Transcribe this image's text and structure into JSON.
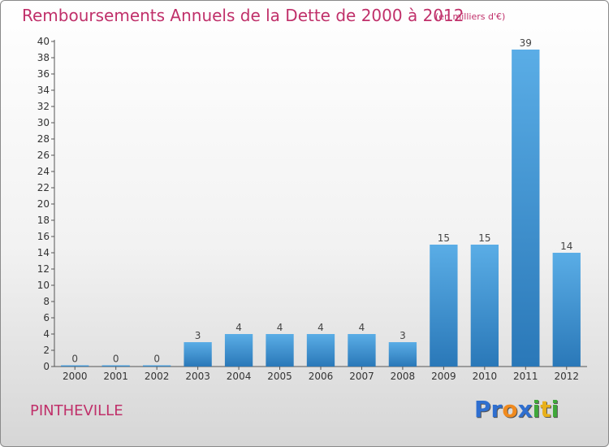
{
  "page": {
    "commune": "PINTHEVILLE",
    "logo": {
      "letters": [
        "P",
        "r",
        "o",
        "x",
        "i",
        "t",
        "i"
      ],
      "colors": [
        "#2f6fd0",
        "#2f6fd0",
        "#f08a1e",
        "#2f6fd0",
        "#3fa83a",
        "#e8b01a",
        "#3fa83a"
      ]
    }
  },
  "chart_data": {
    "type": "bar",
    "title": "Remboursements Annuels de la Dette de 2000 à 2012",
    "unit_label": "(en milliers d'€)",
    "categories": [
      "2000",
      "2001",
      "2002",
      "2003",
      "2004",
      "2005",
      "2006",
      "2007",
      "2008",
      "2009",
      "2010",
      "2011",
      "2012"
    ],
    "values": [
      0,
      0,
      0,
      3,
      4,
      4,
      4,
      4,
      3,
      15,
      15,
      39,
      14
    ],
    "ylim": [
      0,
      40
    ],
    "yticks": [
      0,
      2,
      4,
      6,
      8,
      10,
      12,
      14,
      16,
      18,
      20,
      22,
      24,
      26,
      28,
      30,
      32,
      34,
      36,
      38,
      40
    ],
    "grid": false,
    "colors": {
      "bar_light": "#5aade6",
      "bar_dark": "#2a78b8",
      "axis": "#555555",
      "title": "#c0306a"
    }
  }
}
